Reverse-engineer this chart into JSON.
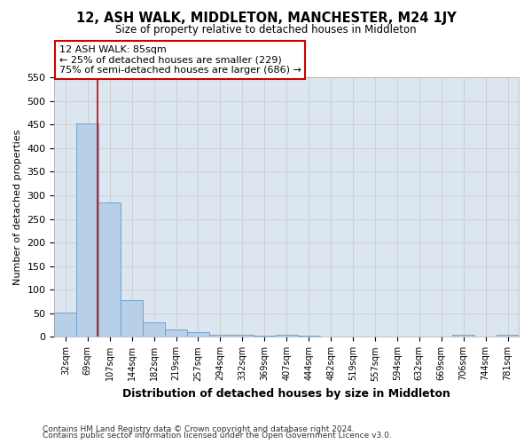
{
  "title": "12, ASH WALK, MIDDLETON, MANCHESTER, M24 1JY",
  "subtitle": "Size of property relative to detached houses in Middleton",
  "xlabel": "Distribution of detached houses by size in Middleton",
  "ylabel": "Number of detached properties",
  "bin_labels": [
    "32sqm",
    "69sqm",
    "107sqm",
    "144sqm",
    "182sqm",
    "219sqm",
    "257sqm",
    "294sqm",
    "332sqm",
    "369sqm",
    "407sqm",
    "444sqm",
    "482sqm",
    "519sqm",
    "557sqm",
    "594sqm",
    "632sqm",
    "669sqm",
    "706sqm",
    "744sqm",
    "781sqm"
  ],
  "bar_heights": [
    52,
    452,
    284,
    78,
    30,
    15,
    10,
    5,
    5,
    2,
    5,
    2,
    0,
    0,
    0,
    0,
    0,
    0,
    5,
    0,
    5
  ],
  "bar_color": "#b8cfe8",
  "bar_edge_color": "#6699cc",
  "grid_color": "#cccccc",
  "bg_color": "#dce6f0",
  "red_line_x": 1.45,
  "annotation_line1": "12 ASH WALK: 85sqm",
  "annotation_line2": "← 25% of detached houses are smaller (229)",
  "annotation_line3": "75% of semi-detached houses are larger (686) →",
  "annotation_box_color": "#ffffff",
  "annotation_box_edge": "#cc0000",
  "ylim": [
    0,
    550
  ],
  "yticks": [
    0,
    50,
    100,
    150,
    200,
    250,
    300,
    350,
    400,
    450,
    500,
    550
  ],
  "footer1": "Contains HM Land Registry data © Crown copyright and database right 2024.",
  "footer2": "Contains public sector information licensed under the Open Government Licence v3.0."
}
